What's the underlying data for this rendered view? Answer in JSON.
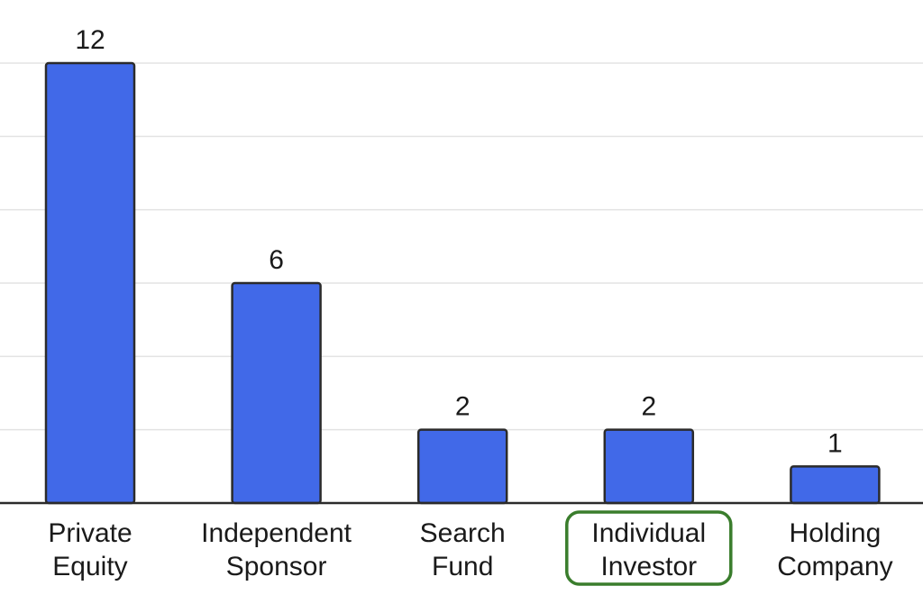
{
  "chart_data": {
    "type": "bar",
    "categories": [
      [
        "Private",
        "Equity"
      ],
      [
        "Independent",
        "Sponsor"
      ],
      [
        "Search",
        "Fund"
      ],
      [
        "Individual",
        "Investor"
      ],
      [
        "Holding",
        "Company"
      ]
    ],
    "values": [
      12,
      6,
      2,
      2,
      1
    ],
    "ylim": [
      0,
      12
    ],
    "grid": true,
    "highlighted_category_index": 3,
    "colors": {
      "bar_fill": "#4169e8",
      "bar_stroke": "#2b2b2b",
      "grid": "#e3e3e3",
      "axis": "#2b2b2b",
      "highlight_border": "#3a7d2c"
    }
  }
}
